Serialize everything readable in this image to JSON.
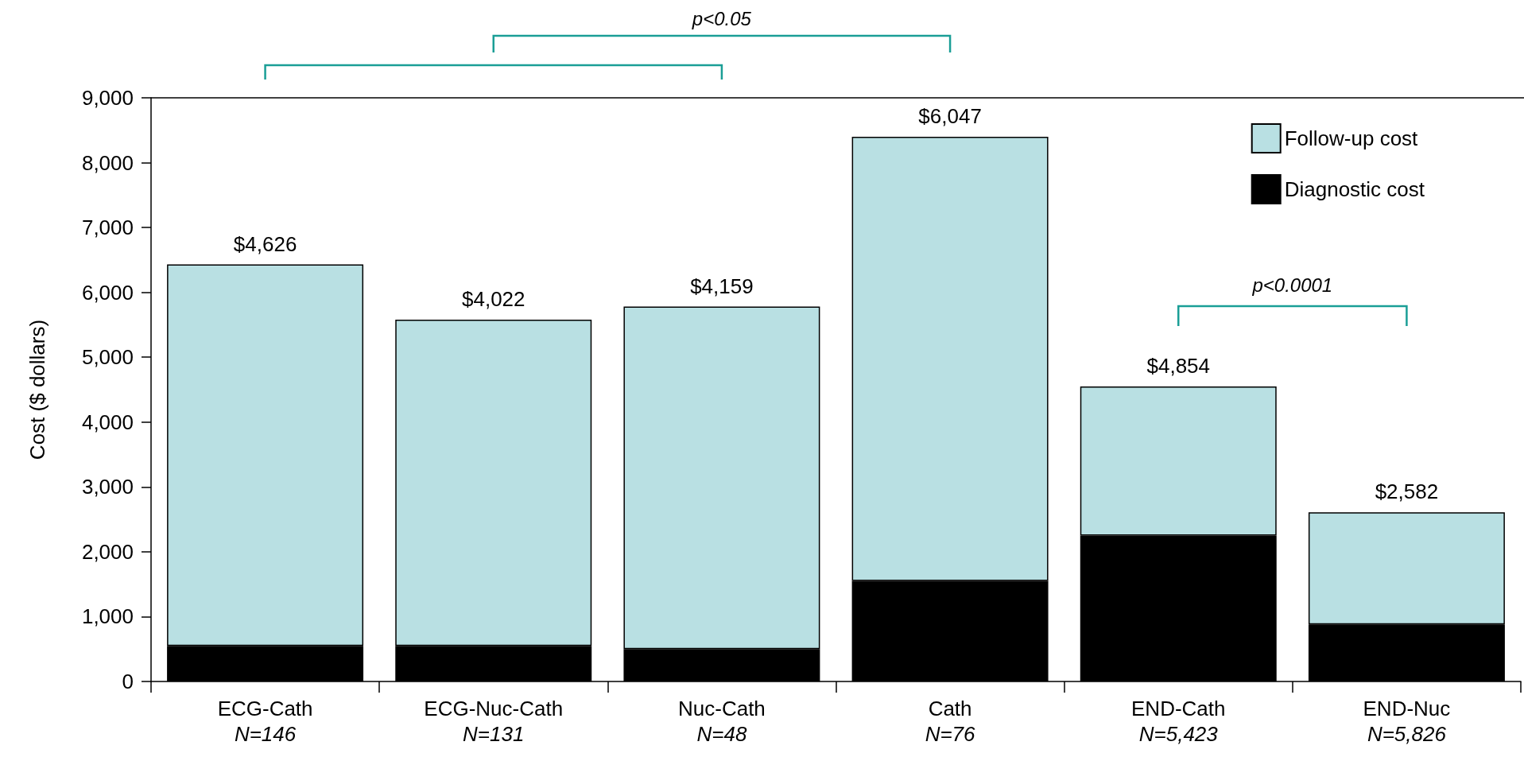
{
  "chart_data": {
    "type": "bar",
    "stacked": true,
    "ylabel": "Cost ($ dollars)",
    "categories": [
      "ECG-Cath\nN=146",
      "ECG-Nuc-Cath\nN=131",
      "Nuc-Cath\nN=48",
      "Cath\nN=76",
      "END-Cath\nN=5,423",
      "END-Nuc\nN=5,826"
    ],
    "series": [
      {
        "name": "Diagnostic cost",
        "color": "#000000",
        "values": [
          550,
          550,
          500,
          1550,
          2250,
          880
        ]
      },
      {
        "name": "Follow-up cost",
        "color": "#b9e0e3",
        "values": [
          5880,
          5030,
          5280,
          6850,
          2300,
          1730
        ]
      }
    ],
    "ylim": [
      0,
      9000
    ],
    "yticks": [
      0,
      {
        "value": 1000,
        "label": "1,000"
      },
      {
        "value": 2000,
        "label": "2,000"
      },
      {
        "value": 3000,
        "label": "3,000"
      },
      {
        "value": 4000,
        "label": "4,000"
      },
      {
        "value": 5000,
        "label": "5,000"
      },
      {
        "value": 6000,
        "label": "6,000"
      },
      {
        "value": 7000,
        "label": "7,000"
      },
      {
        "value": 8000,
        "label": "8,000"
      },
      {
        "value": 9000,
        "label": "9,000"
      }
    ],
    "grid": false,
    "legend": "top right",
    "annotations": [
      "p<0.05",
      "p<0.0001",
      {
        "text": "$4,626",
        "x": "ECG-Cath\nN=146",
        "y": 6430
      },
      {
        "text": "$4,022",
        "x": "ECG-Nuc-Cath\nN=131",
        "y": 5580
      },
      {
        "text": "$4,159",
        "x": "Nuc-Cath\nN=48",
        "y": 5780
      },
      {
        "text": "$6,047",
        "x": "Cath\nN=76",
        "y": 8400
      },
      {
        "text": "$4,854",
        "x": "END-Cath\nN=5,423",
        "y": 4550
      },
      {
        "text": "$2,582",
        "x": "END-Nuc\nN=5,826",
        "y": 2610
      }
    ]
  }
}
